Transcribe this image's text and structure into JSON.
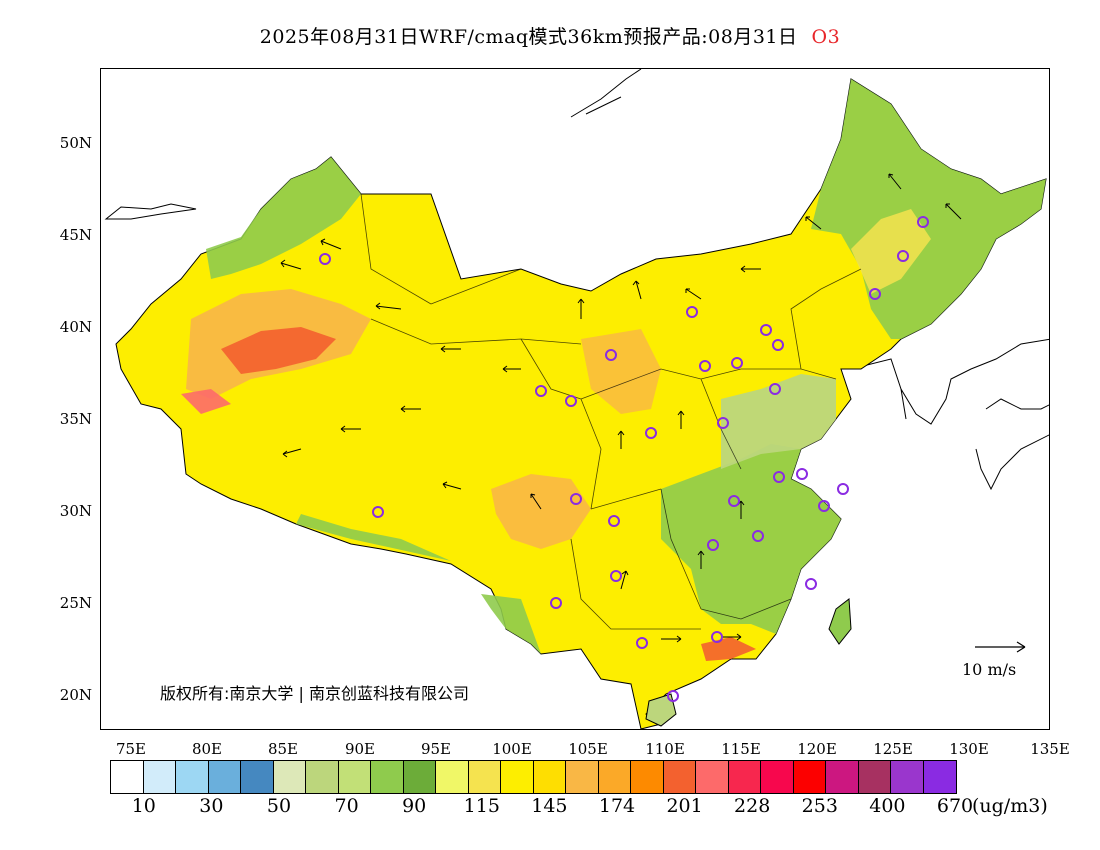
{
  "title": {
    "text": "2025年08月31日WRF/cmaq模式36km预报产品:08月31日",
    "pollutant": "O3"
  },
  "map": {
    "lat_labels": [
      "50N",
      "45N",
      "40N",
      "35N",
      "30N",
      "25N",
      "20N"
    ],
    "lon_labels": [
      "75E",
      "80E",
      "85E",
      "90E",
      "95E",
      "100E",
      "105E",
      "110E",
      "115E",
      "120E",
      "125E",
      "130E",
      "135E"
    ],
    "copyright": "版权所有:南京大学 | 南京创蓝科技有限公司",
    "wind_reference": "10 m/s"
  },
  "legend": {
    "colors": [
      "#ffffff",
      "#d2ecfa",
      "#9dd7f3",
      "#6aafdc",
      "#4588c0",
      "#dde8b8",
      "#bcd67c",
      "#c2e077",
      "#8fcb4d",
      "#6cac39",
      "#f0f767",
      "#f5e34f",
      "#fdee00",
      "#fede01",
      "#f9b745",
      "#fba928",
      "#fd8a00",
      "#f3612f",
      "#fd6a6a",
      "#f7274e",
      "#f7074d",
      "#fc0000",
      "#cc1780",
      "#a73161",
      "#9a36cd",
      "#8a2be2"
    ],
    "labels": [
      "10",
      "30",
      "50",
      "70",
      "90",
      "115",
      "145",
      "174",
      "201",
      "228",
      "253",
      "400",
      "670"
    ],
    "unit": "(ug/m3)"
  }
}
